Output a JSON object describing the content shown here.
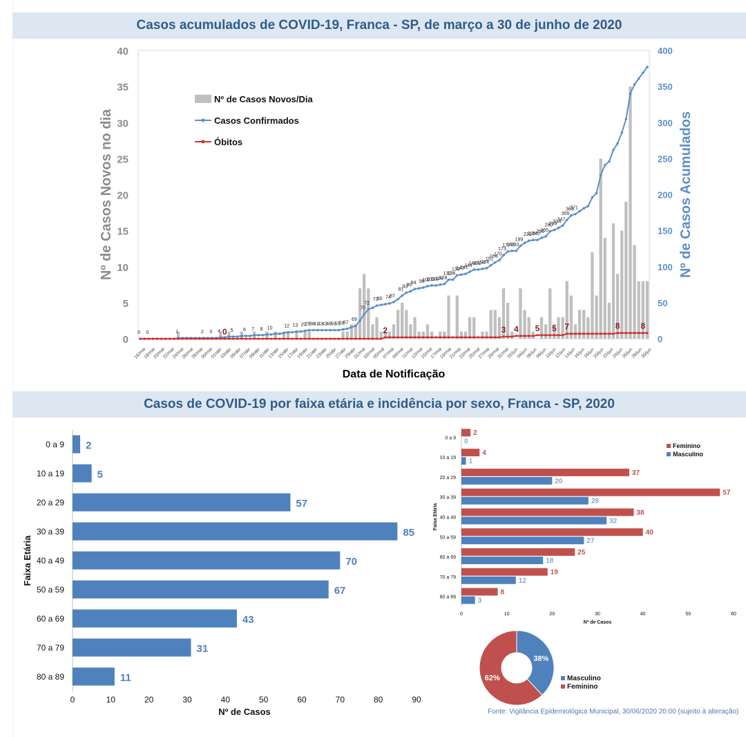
{
  "header1": {
    "title": "Casos acumulados de COVID-19, Franca - SP, de março a 30 de junho de 2020"
  },
  "header2": {
    "title": "Casos de COVID-19 por faixa etária e incidência por sexo, Franca - SP, 2020"
  },
  "source": "Fonte: Vigilância Epidemiológica Municipal, 30/06/2020 20:00 (sujeito à alteração)",
  "colors": {
    "bar_gray": "#bfbfbf",
    "line_blue": "#5b8fc8",
    "obitos_red": "#d12f2f",
    "bar_blue": "#4f81bd",
    "bar_red": "#c0504d",
    "title_blue": "#2f5d8a",
    "axis_gray": "#8c8c8c"
  },
  "chart_data": [
    {
      "type": "bar+line",
      "xlabel": "Data de Notificação",
      "ylabel_left": "Nº de Casos Novos no dia",
      "ylabel_right": "Nº de Casos Acumulados",
      "ylim_left": [
        0,
        40
      ],
      "ylim_right": [
        0,
        400
      ],
      "legend": [
        "Nº de Casos Novos/Dia",
        "Casos Confirmados",
        "Óbitos"
      ],
      "legend_position": "top-left",
      "x_tick_labels": [
        "16/mar",
        "18/mar",
        "20/mar",
        "22/mar",
        "24/mar",
        "26/mar",
        "28/mar",
        "30/mar",
        "01/abr",
        "03/abr",
        "05/abr",
        "07/abr",
        "09/abr",
        "11/abr",
        "13/abr",
        "15/abr",
        "17/abr",
        "19/abr",
        "21/abr",
        "23/abr",
        "25/abr",
        "27/abr",
        "29/abr",
        "01/mai",
        "03/mai",
        "05/mai",
        "07/mai",
        "09/mai",
        "11/mai",
        "13/mai",
        "15/mai",
        "17/mai",
        "19/mai",
        "21/mai",
        "23/mai",
        "25/mai",
        "27/mai",
        "29/mai",
        "31/mai",
        "02/jun",
        "04/jun",
        "06/jun",
        "08/jun",
        "10/jun",
        "12/jun",
        "14/jun",
        "16/jun",
        "18/jun",
        "20/jun",
        "22/jun",
        "24/jun",
        "26/jun",
        "28/jun",
        "30/jun"
      ],
      "new_cases": [
        0,
        0,
        0,
        0,
        0,
        0,
        0,
        0,
        0,
        1,
        0,
        0,
        0,
        0,
        0,
        0,
        0,
        0,
        0,
        1,
        0,
        1,
        0,
        0,
        1,
        0,
        0,
        1,
        0,
        0,
        1,
        0,
        1,
        0,
        1,
        1,
        0,
        1,
        0,
        1,
        1,
        0,
        0,
        0,
        0,
        0,
        0,
        0,
        1,
        1,
        2,
        2,
        7,
        9,
        7,
        2,
        3,
        1,
        1,
        1,
        2,
        4,
        5,
        4,
        2,
        3,
        1,
        1,
        2,
        1,
        0,
        1,
        1,
        6,
        0,
        6,
        1,
        1,
        3,
        3,
        0,
        1,
        1,
        4,
        4,
        3,
        7,
        5,
        1,
        0,
        7,
        4,
        3,
        1,
        0,
        3,
        2,
        7,
        2,
        3,
        3,
        8,
        6,
        2,
        4,
        4,
        3,
        12,
        6,
        25,
        14,
        5,
        16,
        9,
        15,
        19,
        35,
        13,
        8,
        8,
        8
      ],
      "cumulative_labels": {
        "0": 0,
        "2": 0,
        "9": 1,
        "15": 2,
        "17": 3,
        "19": 4,
        "22": 5,
        "25": 6,
        "27": 7,
        "29": 8,
        "31": 10,
        "35": 12,
        "37": 13,
        "39": 20,
        "40": 29,
        "41": 36,
        "42": 41,
        "43": 42,
        "44": 43,
        "45": 46,
        "46": 50,
        "47": 55,
        "48": 59,
        "49": 67,
        "51": 69,
        "53": 70,
        "54": 72,
        "56": 73,
        "57": 80,
        "59": 74,
        "60": 87,
        "62": 81,
        "63": 93,
        "64": 90,
        "65": 94,
        "67": 98,
        "68": 102,
        "69": 103,
        "70": 119,
        "71": 124,
        "72": 128,
        "73": 132,
        "74": 136,
        "75": 139,
        "76": 140,
        "77": 141,
        "78": 144,
        "79": 144,
        "80": 151,
        "81": 154,
        "82": 156,
        "83": 151,
        "84": 164,
        "85": 170,
        "86": 173,
        "87": 177,
        "88": 181,
        "89": 193,
        "90": 199,
        "92": 221,
        "93": 235,
        "94": 240,
        "95": 256,
        "96": 265,
        "97": 280,
        "98": 299,
        "99": 334,
        "100": 347,
        "101": 355,
        "102": 363,
        "103": 371
      },
      "deaths_labels": [
        {
          "i": 20,
          "v": "0"
        },
        {
          "i": 58,
          "v": "2"
        },
        {
          "i": 86,
          "v": "3"
        },
        {
          "i": 89,
          "v": "4"
        },
        {
          "i": 94,
          "v": "5"
        },
        {
          "i": 98,
          "v": "5"
        },
        {
          "i": 101,
          "v": "7"
        },
        {
          "i": 113,
          "v": "8"
        },
        {
          "i": 119,
          "v": "8"
        }
      ]
    },
    {
      "type": "bar",
      "orientation": "horizontal",
      "ylabel": "Faixa Etária",
      "xlabel": "Nº de Casos",
      "xlim": [
        0,
        90
      ],
      "x_ticks": [
        0,
        10,
        20,
        30,
        40,
        50,
        60,
        70,
        80,
        90
      ],
      "categories": [
        "0 a 9",
        "10 a 19",
        "20 a 29",
        "30 a 39",
        "40 a 49",
        "50 a 59",
        "60  a 69",
        "70 a 79",
        "80 a 89"
      ],
      "values": [
        2,
        5,
        57,
        85,
        70,
        67,
        43,
        31,
        11
      ]
    },
    {
      "type": "bar",
      "orientation": "horizontal",
      "ylabel": "Faixa Etária",
      "xlabel": "Nº de Casos",
      "xlim": [
        0,
        60
      ],
      "x_ticks": [
        0,
        10,
        20,
        30,
        40,
        50,
        60
      ],
      "categories": [
        "0 a 9",
        "10 a 19",
        "20 a 29",
        "30 a 39",
        "40 a 49",
        "50 a 59",
        "60 a 69",
        "70 a 79",
        "80 a 89"
      ],
      "legend_position": "top-right",
      "series": [
        {
          "name": "Feminino",
          "values": [
            2,
            4,
            37,
            57,
            38,
            40,
            25,
            19,
            8
          ]
        },
        {
          "name": "Masculino",
          "values": [
            0,
            1,
            20,
            28,
            32,
            27,
            18,
            12,
            3
          ]
        }
      ]
    },
    {
      "type": "pie",
      "style": "donut",
      "legend_position": "right",
      "slices": [
        {
          "label": "Masculino",
          "value": 38,
          "text": "38%"
        },
        {
          "label": "Feminino",
          "value": 62,
          "text": "62%"
        }
      ]
    }
  ]
}
